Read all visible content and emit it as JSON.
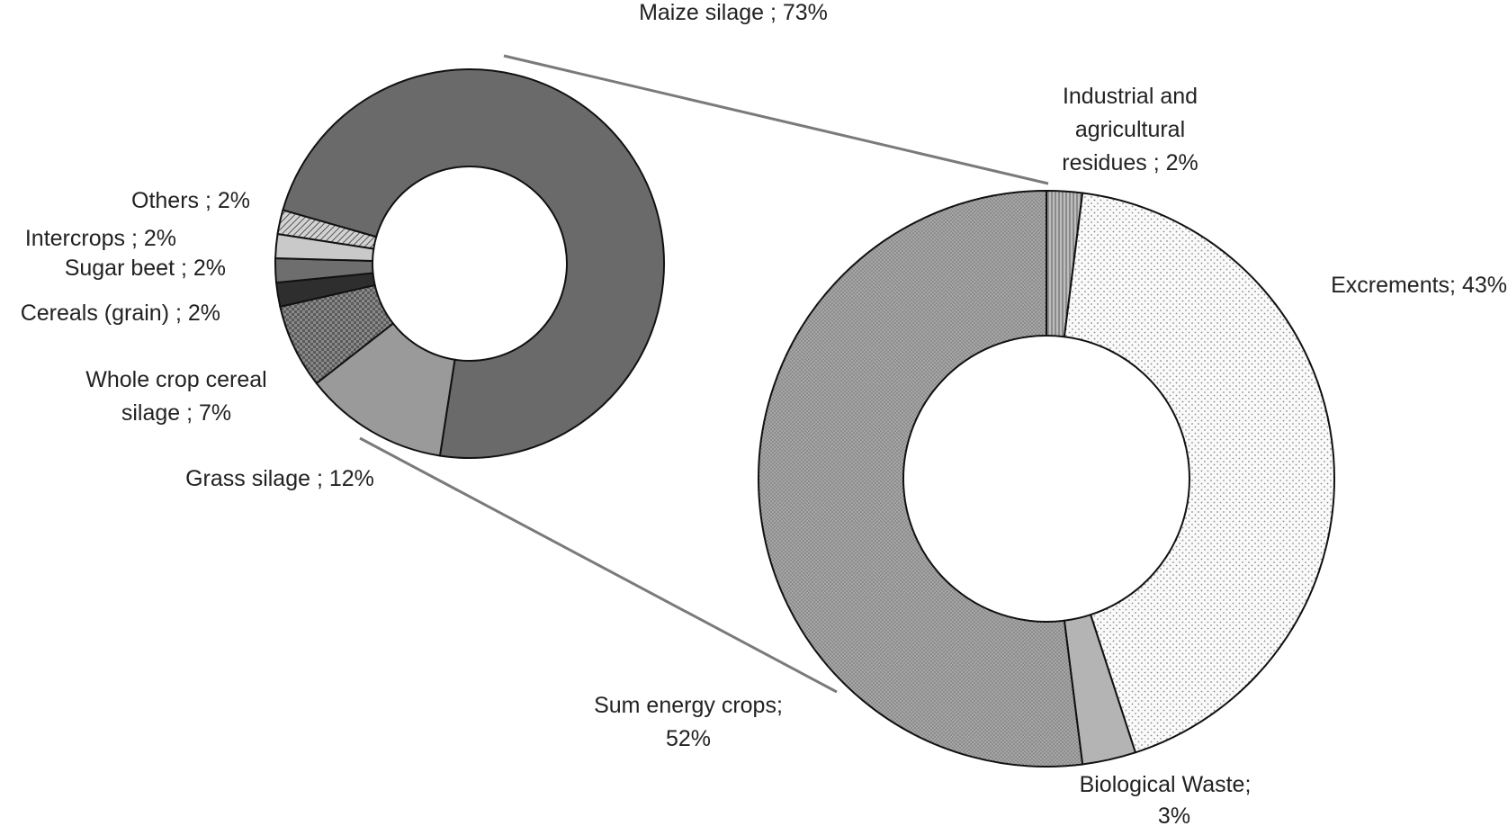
{
  "chart_data": [
    {
      "type": "pie",
      "variant": "donut",
      "slices": [
        {
          "label": "Maize silage ; 73%",
          "value": 73,
          "fill": "#6a6a6a",
          "pattern": "solid"
        },
        {
          "label": "Grass silage ; 12%",
          "value": 12,
          "fill": "#9a9a9a",
          "pattern": "solid"
        },
        {
          "label": "Whole crop cereal silage ; 7%",
          "value": 7,
          "fill": "#888888",
          "pattern": "checker"
        },
        {
          "label": "Cereals (grain) ; 2%",
          "value": 2,
          "fill": "#2e2e2e",
          "pattern": "solid"
        },
        {
          "label": "Sugar beet ; 2%",
          "value": 2,
          "fill": "#6e6e6e",
          "pattern": "solid"
        },
        {
          "label": "Intercrops ; 2%",
          "value": 2,
          "fill": "#c9c9c9",
          "pattern": "solid"
        },
        {
          "label": "Others ; 2%",
          "value": 2,
          "fill": "#bdbdbd",
          "pattern": "hatch"
        }
      ]
    },
    {
      "type": "pie",
      "variant": "donut",
      "slices": [
        {
          "label": "Industrial and agricultural residues ; 2%",
          "value": 2,
          "fill": "#a8a8a8",
          "pattern": "vlines"
        },
        {
          "label": "Excrements; 43%",
          "value": 43,
          "fill": "#f7f7f7",
          "pattern": "dots-light"
        },
        {
          "label": "Biological Waste; 3%",
          "value": 3,
          "fill": "#b4b4b4",
          "pattern": "solid"
        },
        {
          "label": "Sum energy crops; 52%",
          "value": 52,
          "fill": "#9c9c9c",
          "pattern": "dots-dark"
        }
      ]
    }
  ],
  "labels": {
    "maize": "Maize silage ; 73%",
    "others": "Others ; 2%",
    "intercrops": "Intercrops ; 2%",
    "sugar_beet": "Sugar beet ; 2%",
    "cereals": "Cereals (grain) ; 2%",
    "whole_crop_line1": "Whole crop cereal",
    "whole_crop_line2": "silage ; 7%",
    "grass": "Grass silage ; 12%",
    "industrial_line1": "Industrial and",
    "industrial_line2": "agricultural",
    "industrial_line3": "residues ; 2%",
    "excrements": "Excrements; 43%",
    "sum_line1": "Sum energy crops;",
    "sum_line2": "52%",
    "bio_line1": "Biological Waste;",
    "bio_line2": "3%"
  },
  "colors": {
    "outline": "#111111",
    "connector": "#7a7a7a",
    "text": "#222222"
  }
}
